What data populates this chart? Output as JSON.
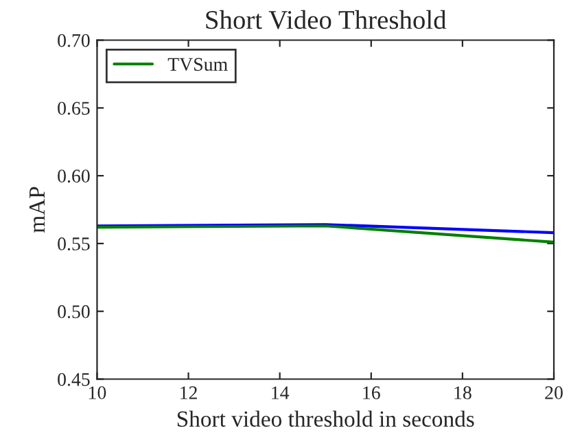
{
  "chart_data": {
    "type": "line",
    "title": "Short Video Threshold",
    "xlabel": "Short video threshold in seconds",
    "ylabel": "mAP",
    "x": [
      10,
      15,
      20
    ],
    "series": [
      {
        "color": "#0000ff",
        "values": [
          0.563,
          0.564,
          0.558
        ]
      },
      {
        "name": "TVSum",
        "color": "#008000",
        "values": [
          0.562,
          0.563,
          0.551
        ]
      }
    ],
    "xlim": [
      10,
      20
    ],
    "xticks": [
      10,
      12,
      14,
      16,
      18,
      20
    ],
    "ylim": [
      0.45,
      0.7
    ],
    "yticks": [
      {
        "value": 0.45,
        "label": "0.45"
      },
      {
        "value": 0.5,
        "label": "0.50"
      },
      {
        "value": 0.55,
        "label": "0.55"
      },
      {
        "value": 0.6,
        "label": "0.60"
      },
      {
        "value": 0.65,
        "label": "0.65"
      },
      {
        "value": 0.7,
        "label": "0.70"
      }
    ],
    "legend": "top left",
    "grid": false,
    "marker": "none",
    "line_style": "solid"
  }
}
